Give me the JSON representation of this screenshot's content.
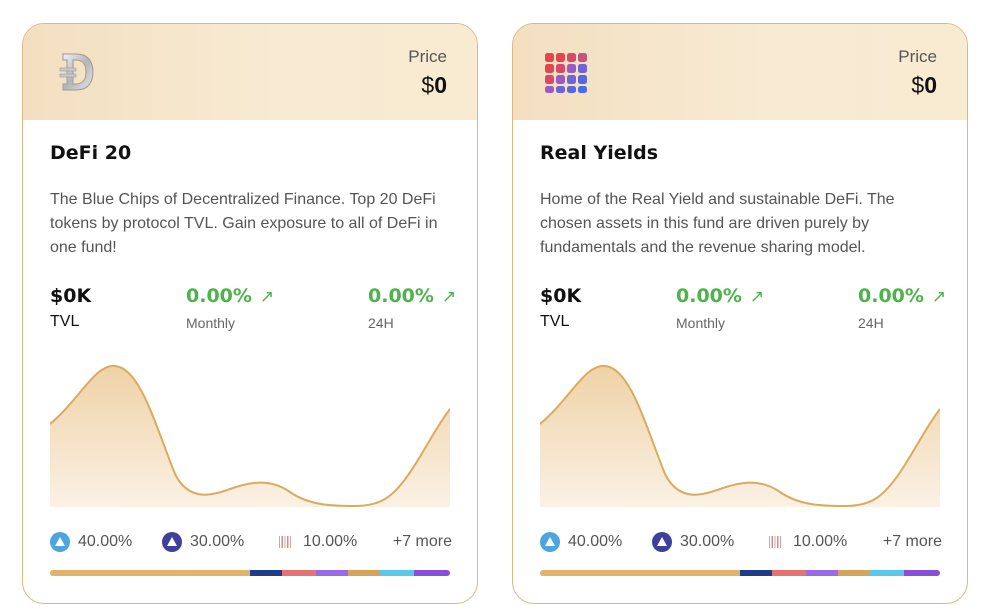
{
  "cards": [
    {
      "name": "DeFi 20",
      "description": "The Blue Chips of Decentralized Finance. Top 20 DeFi tokens by protocol TVL. Gain exposure to all of DeFi in one fund!",
      "price_label": "Price",
      "price_currency": "$",
      "price_value": "0",
      "logo_icon": "defi-d-coin-icon",
      "tvl_value": "$0K",
      "tvl_label": "TVL",
      "monthly_value": "0.00%",
      "monthly_label": "Monthly",
      "day_value": "0.00%",
      "day_label": "24H",
      "trend_icon": "arrow-up-right-icon",
      "allocations": [
        {
          "icon": "arbitrum-icon",
          "pct": "40.00%"
        },
        {
          "icon": "arbitrum-dark-icon",
          "pct": "30.00%"
        },
        {
          "icon": "barcode-token-icon",
          "pct": "10.00%"
        }
      ],
      "more_label": "+7 more",
      "allocation_bar": [
        {
          "share": 50,
          "color": "#e2b36a"
        },
        {
          "share": 8,
          "color": "#1f3b8c"
        },
        {
          "share": 8.5,
          "color": "#e57373"
        },
        {
          "share": 8,
          "color": "#9b6ae6"
        },
        {
          "share": 8,
          "color": "#d4a35c"
        },
        {
          "share": 8.5,
          "color": "#5ac8e8"
        },
        {
          "share": 9,
          "color": "#8a4fd8"
        }
      ]
    },
    {
      "name": "Real Yields",
      "description": "Home of the Real Yield and sustainable DeFi. The chosen assets in this fund are driven purely by fundamentals and the revenue sharing model.",
      "price_label": "Price",
      "price_currency": "$",
      "price_value": "0",
      "logo_icon": "real-yields-grid-icon",
      "tvl_value": "$0K",
      "tvl_label": "TVL",
      "monthly_value": "0.00%",
      "monthly_label": "Monthly",
      "day_value": "0.00%",
      "day_label": "24H",
      "trend_icon": "arrow-up-right-icon",
      "allocations": [
        {
          "icon": "arbitrum-icon",
          "pct": "40.00%"
        },
        {
          "icon": "arbitrum-dark-icon",
          "pct": "30.00%"
        },
        {
          "icon": "barcode-token-icon",
          "pct": "10.00%"
        }
      ],
      "more_label": "+7 more",
      "allocation_bar": [
        {
          "share": 50,
          "color": "#e2b36a"
        },
        {
          "share": 8,
          "color": "#1f3b8c"
        },
        {
          "share": 8.5,
          "color": "#e57373"
        },
        {
          "share": 8,
          "color": "#9b6ae6"
        },
        {
          "share": 8,
          "color": "#d4a35c"
        },
        {
          "share": 8.5,
          "color": "#5ac8e8"
        },
        {
          "share": 9,
          "color": "#8a4fd8"
        }
      ]
    }
  ],
  "colors": {
    "accent_gold": "#d9a85a",
    "positive_green": "#4db34a",
    "header_bg": "#f6e4c8"
  }
}
